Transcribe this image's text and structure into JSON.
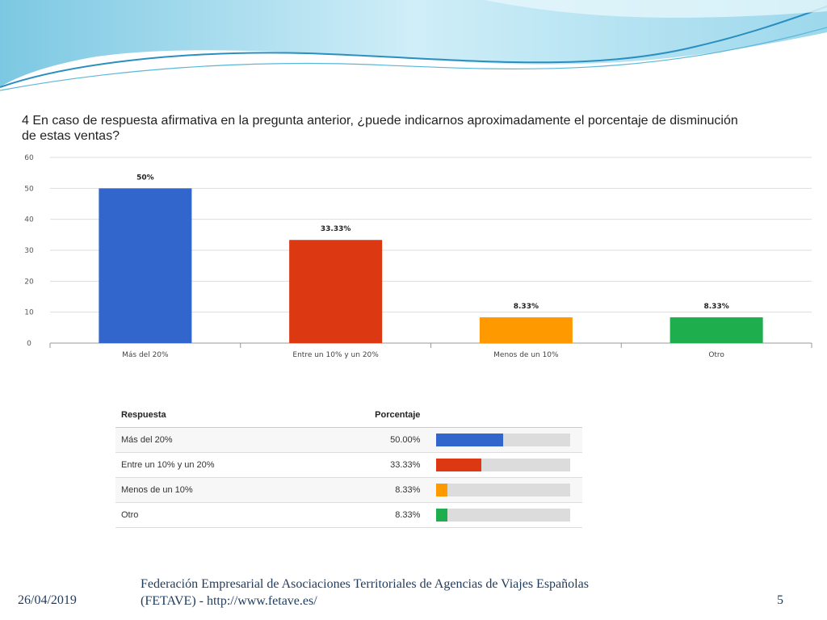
{
  "question": "4 En caso de respuesta afirmativa en la pregunta anterior, ¿puede indicarnos aproximadamente el porcentaje de disminución de estas ventas?",
  "chart_data": {
    "type": "bar",
    "categories": [
      "Más del 20%",
      "Entre un 10% y un 20%",
      "Menos de un 10%",
      "Otro"
    ],
    "values": [
      50,
      33.33,
      8.33,
      8.33
    ],
    "data_labels": [
      "50%",
      "33.33%",
      "8.33%",
      "8.33%"
    ],
    "colors": [
      "#3366cc",
      "#dc3912",
      "#ff9900",
      "#1fae4e"
    ],
    "ylim": [
      0,
      60
    ],
    "yticks": [
      0,
      10,
      20,
      30,
      40,
      50,
      60
    ],
    "grid": true,
    "xlabel": "",
    "ylabel": ""
  },
  "table": {
    "headers": {
      "response": "Respuesta",
      "percentage": "Porcentaje"
    },
    "rows": [
      {
        "response": "Más del 20%",
        "percentage": "50.00%",
        "value": 50.0,
        "color": "#3366cc"
      },
      {
        "response": "Entre un 10% y un 20%",
        "percentage": "33.33%",
        "value": 33.33,
        "color": "#dc3912"
      },
      {
        "response": "Menos de un 10%",
        "percentage": "8.33%",
        "value": 8.33,
        "color": "#ff9900"
      },
      {
        "response": "Otro",
        "percentage": "8.33%",
        "value": 8.33,
        "color": "#1fae4e"
      }
    ]
  },
  "footer": {
    "date": "26/04/2019",
    "organization_line1": "Federación Empresarial de Asociaciones Territoriales de Agencias de Viajes Españolas",
    "organization_line2": "(FETAVE)  - http://www.fetave.es/",
    "page_number": "5"
  },
  "theme": {
    "wave_dark": "#2a8fc0",
    "wave_light": "#bfe6f2",
    "text_dark": "#1f3b5c"
  }
}
